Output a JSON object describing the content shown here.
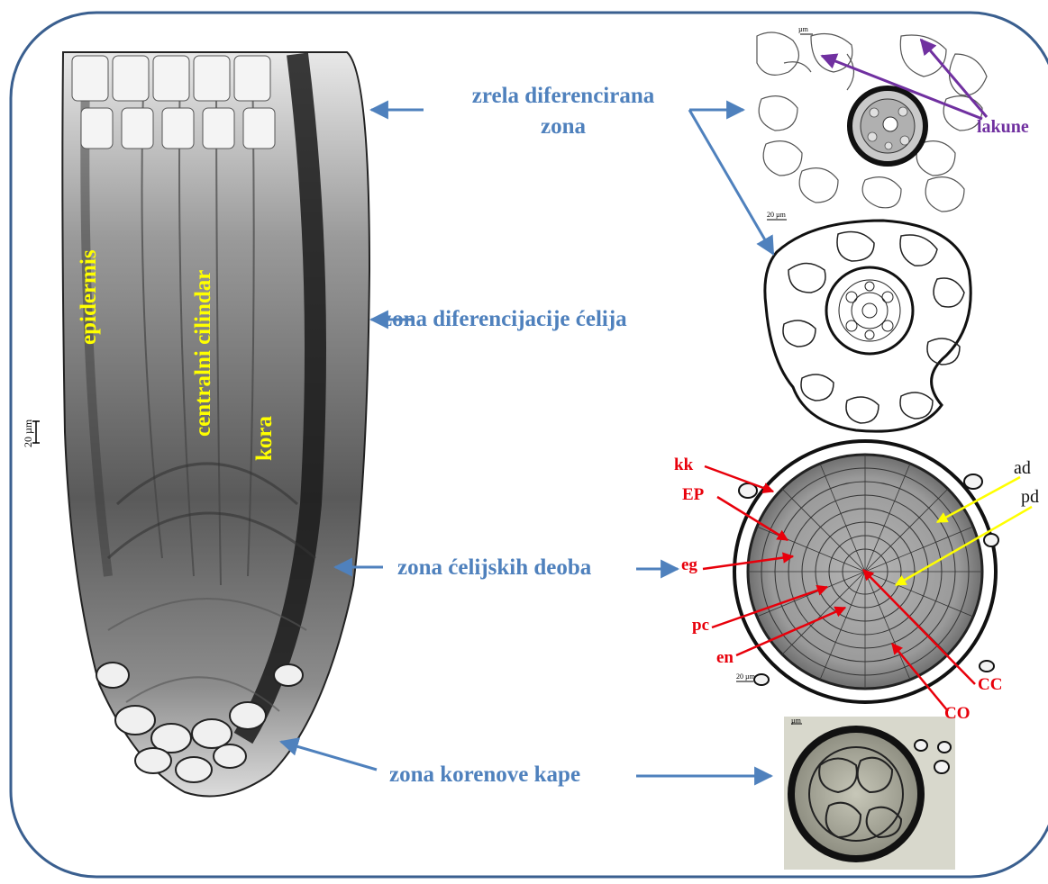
{
  "zones": {
    "mature_zone": {
      "line1": "zrela diferencirana",
      "line2": "zona"
    },
    "differentiation_zone": "zona diferencijacije ćelija",
    "division_zone": "zona ćelijskih deoba",
    "root_cap_zone": "zona korenove  kape"
  },
  "root_labels": {
    "epidermis": "epidermis",
    "central_cylinder": "centralni cilindar",
    "cortex": "kora"
  },
  "cross_section_labels": {
    "kk": "kk",
    "EP": "EP",
    "eg": "eg",
    "pc": "pc",
    "en": "en",
    "CC": "CC",
    "CO": "CO",
    "ad": "ad",
    "pd": "pd"
  },
  "lacunae_label": "lakune",
  "scale_bars": {
    "main": "20 µm",
    "panel_top": "µm",
    "panel_second": "20 µm",
    "panel_third": "20 µm",
    "panel_bottom": "µm"
  },
  "colors": {
    "frame": "#3a5f8f",
    "zone_text": "#4f81bd",
    "arrows": "#4f81bd",
    "root_labels": "#ffff00",
    "cell_labels": "#e8000b",
    "lacunae": "#7030a0",
    "pointer_yellow": "#ffff00"
  }
}
